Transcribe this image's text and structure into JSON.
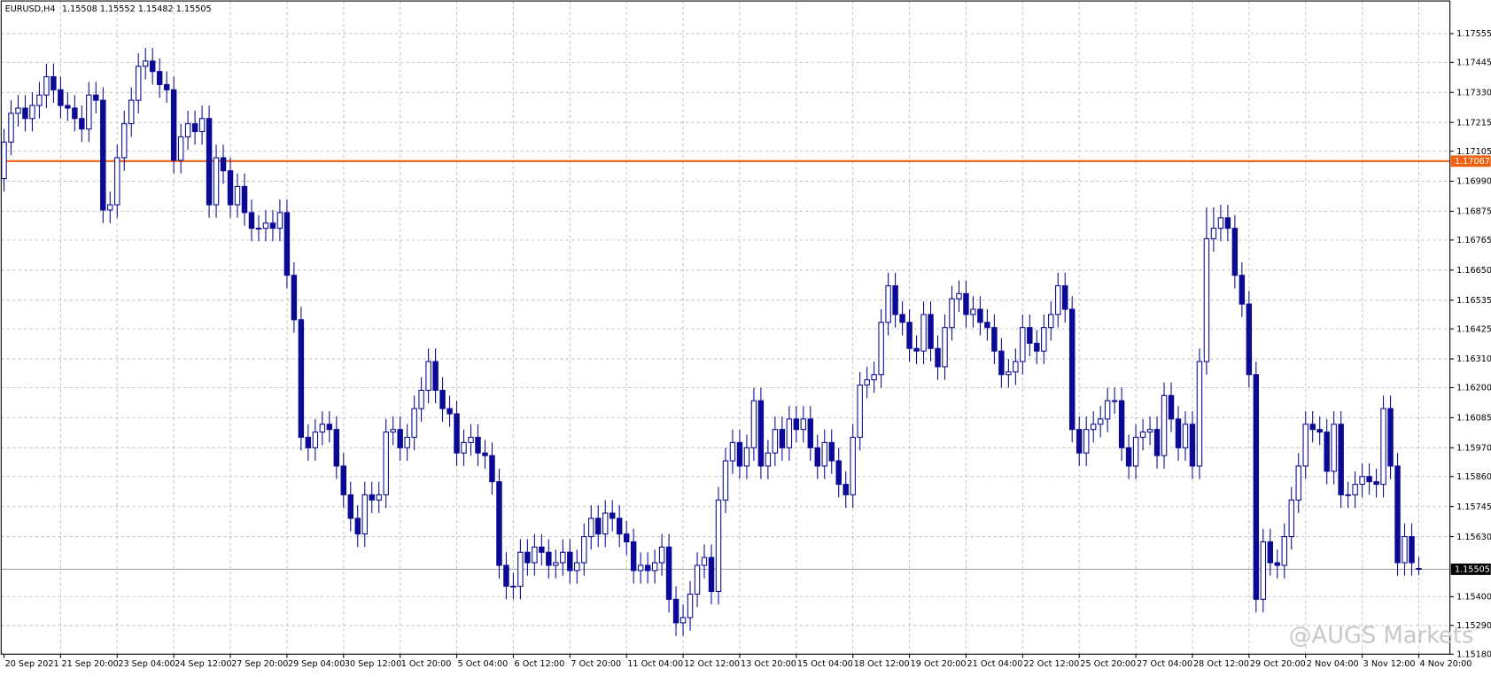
{
  "chart_data": {
    "type": "candlestick",
    "symbol": "EURUSD,H4",
    "watermark": "@AUGS Markets",
    "color": "#0a0a96",
    "up_fill": "#ffffff",
    "grid": true,
    "xlim": [
      -0.4,
      204.4
    ],
    "xticks": [
      {
        "value": 0,
        "label": "20 Sep 2021"
      },
      {
        "value": 8,
        "label": "21 Sep 20:00"
      },
      {
        "value": 16,
        "label": "23 Sep 04:00"
      },
      {
        "value": 24,
        "label": "24 Sep 12:00"
      },
      {
        "value": 32,
        "label": "27 Sep 20:00"
      },
      {
        "value": 40,
        "label": "29 Sep 04:00"
      },
      {
        "value": 48,
        "label": "30 Sep 12:00"
      },
      {
        "value": 56,
        "label": "1 Oct 20:00"
      },
      {
        "value": 64,
        "label": "5 Oct 04:00"
      },
      {
        "value": 72,
        "label": "6 Oct 12:00"
      },
      {
        "value": 80,
        "label": "7 Oct 20:00"
      },
      {
        "value": 88,
        "label": "11 Oct 04:00"
      },
      {
        "value": 96,
        "label": "12 Oct 12:00"
      },
      {
        "value": 104,
        "label": "13 Oct 20:00"
      },
      {
        "value": 112,
        "label": "15 Oct 04:00"
      },
      {
        "value": 120,
        "label": "18 Oct 12:00"
      },
      {
        "value": 128,
        "label": "19 Oct 20:00"
      },
      {
        "value": 136,
        "label": "21 Oct 04:00"
      },
      {
        "value": 144,
        "label": "22 Oct 12:00"
      },
      {
        "value": 152,
        "label": "25 Oct 20:00"
      },
      {
        "value": 160,
        "label": "27 Oct 04:00"
      },
      {
        "value": 168,
        "label": "28 Oct 12:00"
      },
      {
        "value": 176,
        "label": "29 Oct 20:00"
      },
      {
        "value": 184,
        "label": "2 Nov 04:00"
      },
      {
        "value": 192,
        "label": "3 Nov 12:00"
      },
      {
        "value": 200,
        "label": "4 Nov 20:00"
      }
    ],
    "ylim": [
      1.1518,
      1.1768
    ],
    "yticks": [
      1.17555,
      1.17445,
      {
        "value": 1.1733,
        "label": "1.17330"
      },
      1.17215,
      1.17105,
      {
        "value": 1.1699,
        "label": "1.16990"
      },
      1.16875,
      1.16765,
      {
        "value": 1.1665,
        "label": "1.16650"
      },
      1.16535,
      1.16425,
      {
        "value": 1.1631,
        "label": "1.16310"
      },
      {
        "value": 1.162,
        "label": "1.16200"
      },
      1.16085,
      {
        "value": 1.1597,
        "label": "1.15970"
      },
      {
        "value": 1.1586,
        "label": "1.15860"
      },
      1.15745,
      {
        "value": 1.1563,
        "label": "1.15630"
      },
      {
        "value": 1.154,
        "label": "1.15400"
      },
      {
        "value": 1.1529,
        "label": "1.15290"
      },
      {
        "value": 1.1518,
        "label": "1.15180"
      }
    ],
    "hlines": [
      {
        "value": 1.17067,
        "color": "#f06010",
        "label_color": "#ffffff"
      },
      {
        "value": 1.15505,
        "color": "#a8a8a8",
        "label_color": "#ffffff",
        "box_color": "#000000"
      }
    ],
    "candles": {
      "open": [
        1.17,
        1.1714,
        1.1725,
        1.1727,
        1.1723,
        1.1728,
        1.1732,
        1.1739,
        1.1734,
        1.1728,
        1.1727,
        1.1723,
        1.1719,
        1.1732,
        1.173,
        1.1688,
        1.169,
        1.1708,
        1.1721,
        1.173,
        1.1743,
        1.1745,
        1.1741,
        1.1736,
        1.1734,
        1.1707,
        1.1716,
        1.1721,
        1.1718,
        1.1723,
        1.169,
        1.1708,
        1.1703,
        1.169,
        1.1697,
        1.1687,
        1.1681,
        1.1681,
        1.1683,
        1.1681,
        1.1687,
        1.1663,
        1.1646,
        1.1601,
        1.1597,
        1.1603,
        1.1606,
        1.1604,
        1.159,
        1.1579,
        1.157,
        1.1564,
        1.1579,
        1.1577,
        1.1579,
        1.1603,
        1.1604,
        1.1597,
        1.1601,
        1.1612,
        1.1619,
        1.163,
        1.1619,
        1.1612,
        1.161,
        1.1595,
        1.1599,
        1.1601,
        1.1595,
        1.1594,
        1.1584,
        1.1552,
        1.1544,
        1.1544,
        1.1557,
        1.1553,
        1.1559,
        1.1557,
        1.1552,
        1.1553,
        1.1557,
        1.155,
        1.1553,
        1.1563,
        1.157,
        1.1564,
        1.1572,
        1.157,
        1.1564,
        1.1561,
        1.155,
        1.1552,
        1.155,
        1.1553,
        1.1559,
        1.1539,
        1.153,
        1.1532,
        1.1541,
        1.1552,
        1.1555,
        1.1542,
        1.1577,
        1.1592,
        1.1599,
        1.159,
        1.1597,
        1.1615,
        1.159,
        1.1595,
        1.1604,
        1.1597,
        1.1608,
        1.1604,
        1.1608,
        1.1597,
        1.159,
        1.1599,
        1.1592,
        1.1583,
        1.1579,
        1.1601,
        1.1621,
        1.1623,
        1.1625,
        1.1645,
        1.1659,
        1.1648,
        1.1645,
        1.1635,
        1.1634,
        1.1648,
        1.1635,
        1.1628,
        1.1643,
        1.1654,
        1.1656,
        1.1648,
        1.165,
        1.1645,
        1.1643,
        1.1634,
        1.1625,
        1.1626,
        1.163,
        1.1643,
        1.1637,
        1.1634,
        1.1643,
        1.1648,
        1.1659,
        1.165,
        1.1604,
        1.1595,
        1.1604,
        1.1606,
        1.1608,
        1.1615,
        1.1615,
        1.1597,
        1.159,
        1.1601,
        1.1603,
        1.1604,
        1.1594,
        1.1617,
        1.1608,
        1.1597,
        1.1606,
        1.159,
        1.163,
        1.1677,
        1.1681,
        1.1685,
        1.1681,
        1.1663,
        1.1652,
        1.1625,
        1.1539,
        1.1561,
        1.1553,
        1.1552,
        1.1563,
        1.1577,
        1.159,
        1.1606,
        1.1604,
        1.1603,
        1.1588,
        1.1606,
        1.1579,
        1.1579,
        1.1583,
        1.1586,
        1.1584,
        1.1583,
        1.1612,
        1.159,
        1.1553,
        1.1563,
        1.15508
      ],
      "high": [
        1.1719,
        1.173,
        1.1732,
        1.1732,
        1.1733,
        1.1737,
        1.1744,
        1.1744,
        1.1739,
        1.1733,
        1.1732,
        1.1728,
        1.1737,
        1.1737,
        1.1735,
        1.1695,
        1.1713,
        1.1726,
        1.1735,
        1.1748,
        1.175,
        1.175,
        1.1746,
        1.1741,
        1.1739,
        1.1721,
        1.1726,
        1.1726,
        1.1728,
        1.1728,
        1.1713,
        1.1713,
        1.1708,
        1.1702,
        1.1702,
        1.1692,
        1.1686,
        1.1688,
        1.1688,
        1.1692,
        1.1692,
        1.1668,
        1.1651,
        1.1606,
        1.1608,
        1.1611,
        1.1611,
        1.1609,
        1.1595,
        1.1584,
        1.1575,
        1.1584,
        1.1584,
        1.1584,
        1.1608,
        1.1609,
        1.1609,
        1.1606,
        1.1617,
        1.1624,
        1.1635,
        1.1635,
        1.1624,
        1.1617,
        1.1615,
        1.1604,
        1.1606,
        1.1606,
        1.16,
        1.1599,
        1.1589,
        1.1557,
        1.1549,
        1.1562,
        1.1562,
        1.1564,
        1.1564,
        1.1562,
        1.1558,
        1.1562,
        1.1562,
        1.1558,
        1.1568,
        1.1575,
        1.1575,
        1.1577,
        1.1577,
        1.1575,
        1.1569,
        1.1566,
        1.1557,
        1.1557,
        1.1558,
        1.1564,
        1.1564,
        1.1544,
        1.1537,
        1.1546,
        1.1557,
        1.156,
        1.156,
        1.1582,
        1.1597,
        1.1604,
        1.1604,
        1.1602,
        1.162,
        1.162,
        1.16,
        1.1609,
        1.1609,
        1.1613,
        1.1613,
        1.1613,
        1.1613,
        1.1602,
        1.1604,
        1.1604,
        1.1597,
        1.1588,
        1.1606,
        1.1626,
        1.1628,
        1.163,
        1.165,
        1.1664,
        1.1664,
        1.1653,
        1.165,
        1.164,
        1.1653,
        1.1653,
        1.164,
        1.1648,
        1.1659,
        1.1661,
        1.1661,
        1.1655,
        1.1655,
        1.165,
        1.1648,
        1.1639,
        1.1631,
        1.1635,
        1.1648,
        1.1648,
        1.1642,
        1.1648,
        1.1653,
        1.1664,
        1.1664,
        1.1655,
        1.1609,
        1.1609,
        1.1611,
        1.1613,
        1.162,
        1.162,
        1.162,
        1.1602,
        1.1606,
        1.1608,
        1.1609,
        1.1609,
        1.1622,
        1.1622,
        1.1613,
        1.1611,
        1.1611,
        1.1635,
        1.1689,
        1.1689,
        1.169,
        1.169,
        1.1686,
        1.1668,
        1.1657,
        1.163,
        1.1566,
        1.1566,
        1.1558,
        1.1568,
        1.1582,
        1.1595,
        1.1611,
        1.1611,
        1.1609,
        1.1608,
        1.1611,
        1.1611,
        1.1584,
        1.1588,
        1.1591,
        1.1591,
        1.1589,
        1.1617,
        1.1617,
        1.1595,
        1.1568,
        1.1568,
        1.15552
      ],
      "low": [
        1.1695,
        1.1709,
        1.172,
        1.1718,
        1.1718,
        1.1723,
        1.1727,
        1.1729,
        1.1723,
        1.1722,
        1.1718,
        1.1714,
        1.1714,
        1.1725,
        1.1683,
        1.1683,
        1.1685,
        1.1703,
        1.1716,
        1.1725,
        1.1738,
        1.1736,
        1.1731,
        1.1729,
        1.1702,
        1.1702,
        1.1711,
        1.1713,
        1.1713,
        1.1685,
        1.1685,
        1.1698,
        1.1685,
        1.1685,
        1.1682,
        1.1676,
        1.1676,
        1.1676,
        1.1676,
        1.1676,
        1.1658,
        1.1641,
        1.1596,
        1.1592,
        1.1592,
        1.1598,
        1.1599,
        1.1585,
        1.1574,
        1.1565,
        1.1559,
        1.1559,
        1.1572,
        1.1572,
        1.1574,
        1.1598,
        1.1592,
        1.1592,
        1.1596,
        1.1607,
        1.1614,
        1.1614,
        1.1607,
        1.1605,
        1.159,
        1.159,
        1.1594,
        1.159,
        1.1589,
        1.1579,
        1.1547,
        1.1539,
        1.1539,
        1.1539,
        1.1548,
        1.1548,
        1.1552,
        1.1547,
        1.1547,
        1.1548,
        1.1545,
        1.1545,
        1.1548,
        1.1558,
        1.1559,
        1.1559,
        1.1565,
        1.1559,
        1.1556,
        1.1545,
        1.1545,
        1.1545,
        1.1545,
        1.1548,
        1.1534,
        1.1525,
        1.1525,
        1.1527,
        1.1536,
        1.1547,
        1.1537,
        1.1537,
        1.1572,
        1.1587,
        1.1585,
        1.1585,
        1.1592,
        1.1585,
        1.1585,
        1.159,
        1.1592,
        1.1592,
        1.1599,
        1.1599,
        1.1592,
        1.1585,
        1.1585,
        1.1587,
        1.1578,
        1.1574,
        1.1574,
        1.1596,
        1.1616,
        1.1618,
        1.162,
        1.164,
        1.1643,
        1.164,
        1.163,
        1.1629,
        1.1629,
        1.163,
        1.1623,
        1.1623,
        1.1638,
        1.1649,
        1.1643,
        1.1643,
        1.164,
        1.1638,
        1.1629,
        1.162,
        1.162,
        1.1621,
        1.1625,
        1.1632,
        1.1629,
        1.1629,
        1.1638,
        1.1643,
        1.1645,
        1.1599,
        1.159,
        1.159,
        1.1599,
        1.1601,
        1.1603,
        1.161,
        1.1592,
        1.1585,
        1.1585,
        1.1596,
        1.1598,
        1.1589,
        1.1589,
        1.1603,
        1.1592,
        1.1592,
        1.1585,
        1.1585,
        1.1625,
        1.1672,
        1.1676,
        1.1676,
        1.1658,
        1.1647,
        1.162,
        1.1534,
        1.1534,
        1.1548,
        1.1547,
        1.1547,
        1.1558,
        1.1572,
        1.1585,
        1.1599,
        1.1598,
        1.1583,
        1.1583,
        1.1574,
        1.1574,
        1.1574,
        1.1578,
        1.1579,
        1.1578,
        1.1578,
        1.1585,
        1.1548,
        1.1548,
        1.1548,
        1.15482
      ],
      "close": [
        1.1714,
        1.1725,
        1.1727,
        1.1723,
        1.1728,
        1.1732,
        1.1739,
        1.1734,
        1.1728,
        1.1727,
        1.1723,
        1.1719,
        1.1732,
        1.173,
        1.1688,
        1.169,
        1.1708,
        1.1721,
        1.173,
        1.1743,
        1.1745,
        1.1741,
        1.1736,
        1.1734,
        1.1707,
        1.1716,
        1.1721,
        1.1718,
        1.1723,
        1.169,
        1.1708,
        1.1703,
        1.169,
        1.1697,
        1.1687,
        1.1681,
        1.1681,
        1.1683,
        1.1681,
        1.1687,
        1.1663,
        1.1646,
        1.1601,
        1.1597,
        1.1603,
        1.1606,
        1.1604,
        1.159,
        1.1579,
        1.157,
        1.1564,
        1.1579,
        1.1577,
        1.1579,
        1.1603,
        1.1604,
        1.1597,
        1.1601,
        1.1612,
        1.1619,
        1.163,
        1.1619,
        1.1612,
        1.161,
        1.1595,
        1.1599,
        1.1601,
        1.1595,
        1.1594,
        1.1584,
        1.1552,
        1.1544,
        1.1544,
        1.1557,
        1.1553,
        1.1559,
        1.1557,
        1.1552,
        1.1553,
        1.1557,
        1.155,
        1.1553,
        1.1563,
        1.157,
        1.1564,
        1.1572,
        1.157,
        1.1564,
        1.1561,
        1.155,
        1.1552,
        1.155,
        1.1553,
        1.1559,
        1.1539,
        1.153,
        1.1532,
        1.1541,
        1.1552,
        1.1555,
        1.1542,
        1.1577,
        1.1592,
        1.1599,
        1.159,
        1.1597,
        1.1615,
        1.159,
        1.1595,
        1.1604,
        1.1597,
        1.1608,
        1.1604,
        1.1608,
        1.1597,
        1.159,
        1.1599,
        1.1592,
        1.1583,
        1.1579,
        1.1601,
        1.1621,
        1.1623,
        1.1625,
        1.1645,
        1.1659,
        1.1648,
        1.1645,
        1.1635,
        1.1634,
        1.1648,
        1.1635,
        1.1628,
        1.1643,
        1.1654,
        1.1656,
        1.1648,
        1.165,
        1.1645,
        1.1643,
        1.1634,
        1.1625,
        1.1626,
        1.163,
        1.1643,
        1.1637,
        1.1634,
        1.1643,
        1.1648,
        1.1659,
        1.165,
        1.1604,
        1.1595,
        1.1604,
        1.1606,
        1.1608,
        1.1615,
        1.1615,
        1.1597,
        1.159,
        1.1601,
        1.1603,
        1.1604,
        1.1594,
        1.1617,
        1.1608,
        1.1597,
        1.1606,
        1.159,
        1.163,
        1.1677,
        1.1681,
        1.1685,
        1.1681,
        1.1663,
        1.1652,
        1.1625,
        1.1539,
        1.1561,
        1.1553,
        1.1552,
        1.1563,
        1.1577,
        1.159,
        1.1606,
        1.1604,
        1.1603,
        1.1588,
        1.1606,
        1.1579,
        1.1579,
        1.1583,
        1.1586,
        1.1584,
        1.1583,
        1.1612,
        1.159,
        1.1553,
        1.1563,
        1.1553,
        1.15505
      ]
    }
  }
}
